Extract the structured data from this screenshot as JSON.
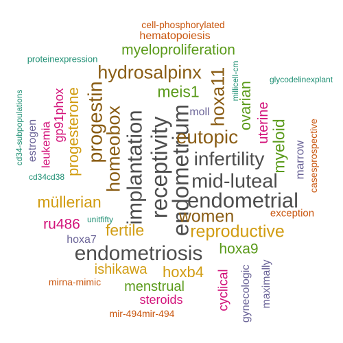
{
  "colors": {
    "gray": "#4d4d4d",
    "orange": "#c9560e",
    "green": "#5a9a1a",
    "olive": "#8a5d15",
    "gold": "#d19c11",
    "purple": "#6a6397",
    "magenta": "#d2127a",
    "teal": "#1e8f73"
  },
  "words": [
    {
      "key": "cell_phosphorylated",
      "text": "cell-phosphorylated",
      "color": "orange"
    },
    {
      "key": "hematopoiesis",
      "text": "hematopoiesis",
      "color": "orange"
    },
    {
      "key": "myeloproliferation",
      "text": "myeloproliferation",
      "color": "green"
    },
    {
      "key": "proteinexpression",
      "text": "proteinexpression",
      "color": "teal"
    },
    {
      "key": "hydrosalpinx",
      "text": "hydrosalpinx",
      "color": "olive"
    },
    {
      "key": "hoxa11",
      "text": "hoxa11",
      "color": "olive"
    },
    {
      "key": "milli_cell_cm",
      "text": "millicell-cm",
      "color": "teal"
    },
    {
      "key": "glycodelinexplant",
      "text": "glycodelinexplant",
      "color": "teal"
    },
    {
      "key": "meis1",
      "text": "meis1",
      "color": "green"
    },
    {
      "key": "moll",
      "text": "moll",
      "color": "purple"
    },
    {
      "key": "ovarian",
      "text": "ovarian",
      "color": "green"
    },
    {
      "key": "uterine",
      "text": "uterine",
      "color": "magenta"
    },
    {
      "key": "casesprospective",
      "text": "casesprospective",
      "color": "orange"
    },
    {
      "key": "cd34_subpopulations",
      "text": "cd34-subpopulations",
      "color": "teal"
    },
    {
      "key": "estrogen",
      "text": "estrogen",
      "color": "purple"
    },
    {
      "key": "leukemia",
      "text": "leukemia",
      "color": "magenta"
    },
    {
      "key": "gp91phox",
      "text": "gp91phox",
      "color": "magenta"
    },
    {
      "key": "progesterone",
      "text": "progesterone",
      "color": "gold"
    },
    {
      "key": "progestin",
      "text": "progestin",
      "color": "olive"
    },
    {
      "key": "homeobox",
      "text": "homeobox",
      "color": "olive"
    },
    {
      "key": "implantation",
      "text": "implantation",
      "color": "gray"
    },
    {
      "key": "receptivity",
      "text": "receptivity",
      "color": "gray"
    },
    {
      "key": "endometrium",
      "text": "endometrium",
      "color": "gray"
    },
    {
      "key": "eutopic",
      "text": "eutopic",
      "color": "olive"
    },
    {
      "key": "infertility",
      "text": "infertility",
      "color": "gray"
    },
    {
      "key": "myeloid",
      "text": "myeloid",
      "color": "green"
    },
    {
      "key": "marrow",
      "text": "marrow",
      "color": "purple"
    },
    {
      "key": "cd34cd38",
      "text": "cd34cd38",
      "color": "teal"
    },
    {
      "key": "mid_luteal",
      "text": "mid-luteal",
      "color": "gray"
    },
    {
      "key": "endometrial",
      "text": "endometrial",
      "color": "gray"
    },
    {
      "key": "mullerian",
      "text": "müllerian",
      "color": "gold"
    },
    {
      "key": "women",
      "text": "women",
      "color": "olive"
    },
    {
      "key": "exception",
      "text": "exception",
      "color": "orange"
    },
    {
      "key": "ru486",
      "text": "ru486",
      "color": "magenta"
    },
    {
      "key": "unitfifty",
      "text": "unitfifty",
      "color": "teal"
    },
    {
      "key": "fertile",
      "text": "fertile",
      "color": "gold"
    },
    {
      "key": "reproductive",
      "text": "reproductive",
      "color": "gold"
    },
    {
      "key": "hoxa7",
      "text": "hoxa7",
      "color": "purple"
    },
    {
      "key": "endometriosis",
      "text": "endometriosis",
      "color": "gray"
    },
    {
      "key": "hoxa9",
      "text": "hoxa9",
      "color": "green"
    },
    {
      "key": "ishikawa",
      "text": "ishikawa",
      "color": "gold"
    },
    {
      "key": "hoxb4",
      "text": "hoxb4",
      "color": "gold"
    },
    {
      "key": "mirna_mimic",
      "text": "mirna-mimic",
      "color": "orange"
    },
    {
      "key": "menstrual",
      "text": "menstrual",
      "color": "green"
    },
    {
      "key": "steroids",
      "text": "steroids",
      "color": "magenta"
    },
    {
      "key": "cyclical",
      "text": "cyclical",
      "color": "magenta"
    },
    {
      "key": "gynecologic",
      "text": "gynecologic",
      "color": "purple"
    },
    {
      "key": "maximally",
      "text": "maximally",
      "color": "purple"
    },
    {
      "key": "mir_494",
      "text": "mir-494mir-494",
      "color": "orange"
    }
  ]
}
